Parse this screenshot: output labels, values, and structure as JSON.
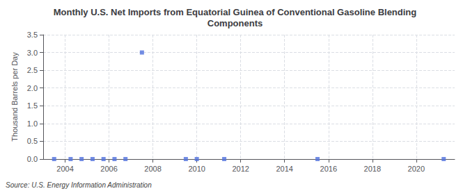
{
  "chart_data": {
    "type": "scatter",
    "title": "Monthly U.S. Net Imports from Equatorial Guinea of Conventional Gasoline Blending\nComponents",
    "ylabel": "Thousand Barrels per Day",
    "annotation": "Source: U.S. Energy Information Administration",
    "x": [
      2003.5,
      2004.25,
      2004.75,
      2005.25,
      2005.75,
      2006.25,
      2006.75,
      2007.5,
      2009.5,
      2010.0,
      2011.25,
      2015.5,
      2021.25
    ],
    "values": [
      0.0,
      0.0,
      0.0,
      0.0,
      0.0,
      0.0,
      0.0,
      3.0,
      0.0,
      0.0,
      0.0,
      0.0,
      0.0
    ],
    "marker": "square",
    "xlim": [
      2003.0,
      2021.75
    ],
    "xticks": [
      2004,
      2006,
      2008,
      2010,
      2012,
      2014,
      2016,
      2018,
      2020
    ],
    "ylim": [
      0.0,
      3.5
    ],
    "yticks": [
      {
        "value": 0.0,
        "label": "0.0"
      },
      0.5,
      {
        "value": 1.0,
        "label": "1.0"
      },
      1.5,
      {
        "value": 2.0,
        "label": "2.0"
      },
      2.5,
      {
        "value": 3.0,
        "label": "3.0"
      },
      3.5
    ],
    "grid": true
  }
}
